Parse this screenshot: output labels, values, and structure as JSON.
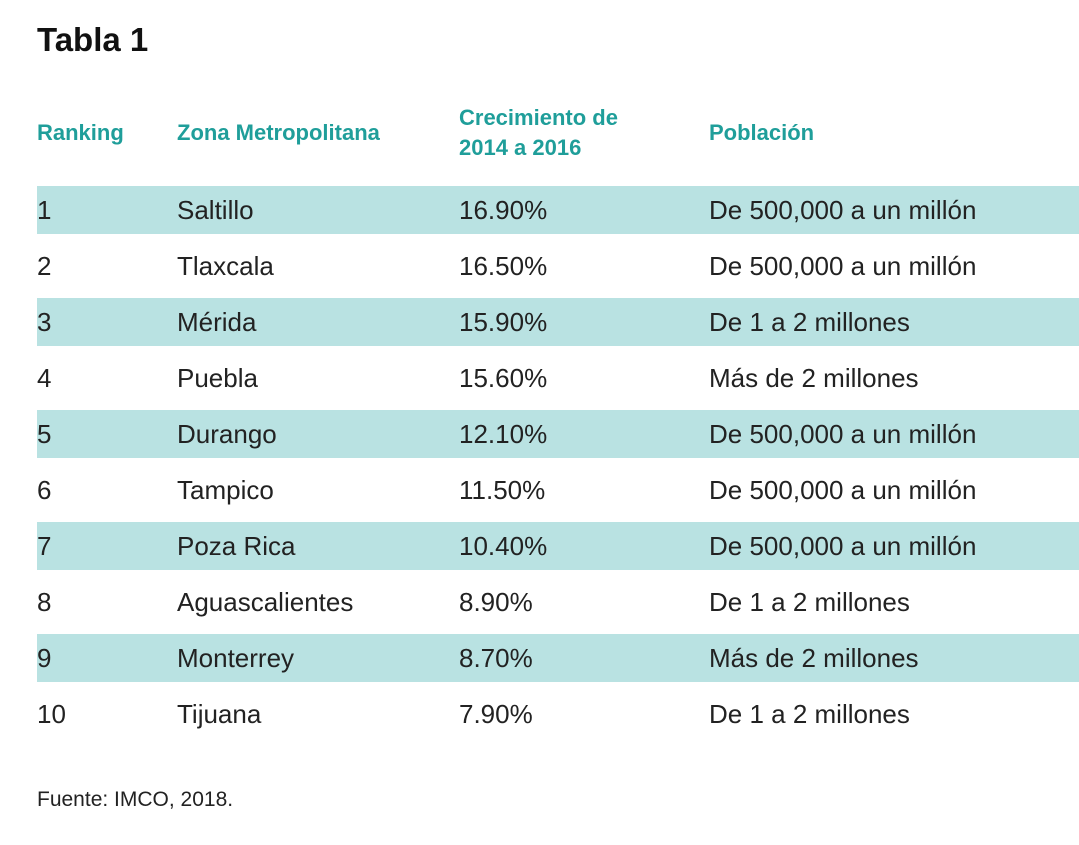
{
  "title": "Tabla 1",
  "table": {
    "headers": {
      "ranking": "Ranking",
      "zona": "Zona Metropolitana",
      "crecimiento_line1": "Crecimiento de",
      "crecimiento_line2": "2014 a 2016",
      "poblacion": "Población"
    },
    "rows": [
      {
        "ranking": "1",
        "zona": "Saltillo",
        "crecimiento": "16.90%",
        "poblacion": "De 500,000 a un millón"
      },
      {
        "ranking": "2",
        "zona": "Tlaxcala",
        "crecimiento": "16.50%",
        "poblacion": "De 500,000 a un millón"
      },
      {
        "ranking": "3",
        "zona": "Mérida",
        "crecimiento": "15.90%",
        "poblacion": "De 1 a 2 millones"
      },
      {
        "ranking": "4",
        "zona": "Puebla",
        "crecimiento": "15.60%",
        "poblacion": "Más de 2 millones"
      },
      {
        "ranking": "5",
        "zona": "Durango",
        "crecimiento": "12.10%",
        "poblacion": "De 500,000 a un millón"
      },
      {
        "ranking": "6",
        "zona": "Tampico",
        "crecimiento": "11.50%",
        "poblacion": "De 500,000 a un millón"
      },
      {
        "ranking": "7",
        "zona": "Poza Rica",
        "crecimiento": "10.40%",
        "poblacion": "De 500,000 a un millón"
      },
      {
        "ranking": "8",
        "zona": "Aguascalientes",
        "crecimiento": "8.90%",
        "poblacion": "De 1 a 2 millones"
      },
      {
        "ranking": "9",
        "zona": "Monterrey",
        "crecimiento": "8.70%",
        "poblacion": "Más de 2 millones"
      },
      {
        "ranking": "10",
        "zona": "Tijuana",
        "crecimiento": "7.90%",
        "poblacion": "De 1 a 2 millones"
      }
    ]
  },
  "footer": "Fuente: IMCO, 2018.",
  "colors": {
    "header_text": "#1f9e9a",
    "band": "#b9e2e2",
    "body_text": "#222222"
  }
}
